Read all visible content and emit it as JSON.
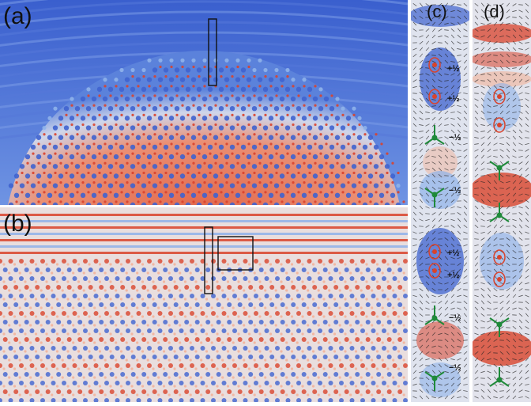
{
  "figure": {
    "panels": [
      {
        "id": "a",
        "label": "(a)"
      },
      {
        "id": "b",
        "label": "(b)"
      },
      {
        "id": "c",
        "label": "(c)"
      },
      {
        "id": "d",
        "label": "(d)"
      }
    ],
    "defect_labels": [
      "+½",
      "+½",
      "−½",
      "−½",
      "+½",
      "+½",
      "−½",
      "−½"
    ],
    "colors": {
      "hot": "#d9432c",
      "warm": "#f2b39a",
      "neutral": "#e6e2e6",
      "cool": "#8fb2ea",
      "cold": "#3f63cf",
      "defect_green": "#1f8a3a",
      "marker": "#111111"
    }
  }
}
